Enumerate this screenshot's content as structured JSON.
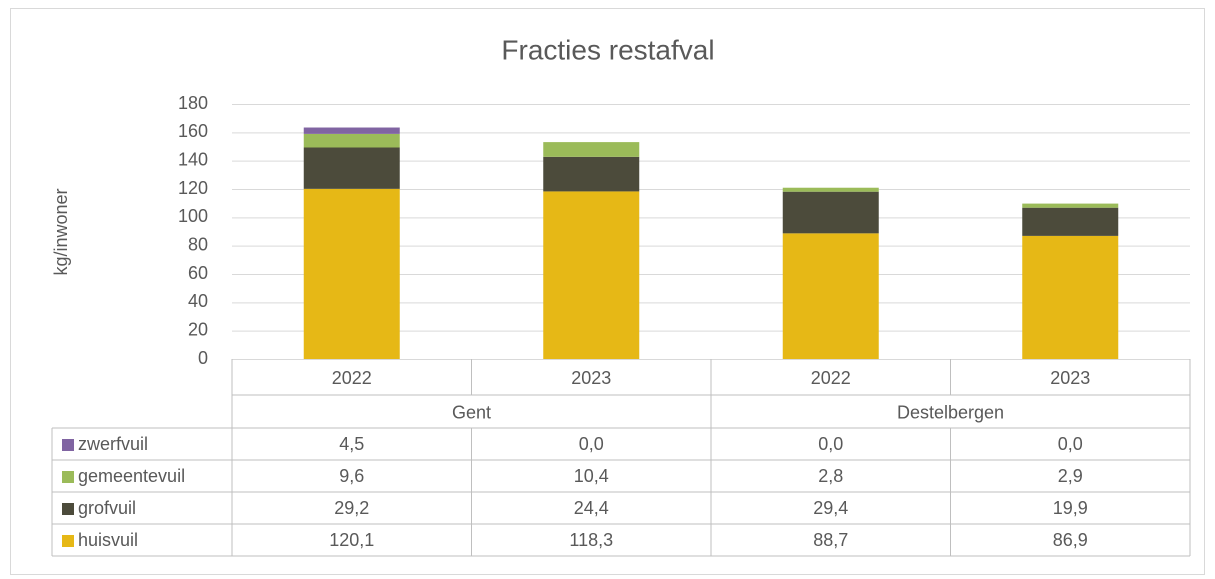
{
  "chart_data": {
    "type": "bar",
    "stacked": true,
    "title": "Fracties restafval",
    "y_label": "kg/inwoner",
    "categories": [
      "2022",
      "2023",
      "2022",
      "2023"
    ],
    "groups": [
      "Gent",
      "Destelbergen"
    ],
    "series": [
      {
        "name": "huisvuil",
        "color": "#e6b816",
        "values": [
          120.1,
          118.3,
          88.7,
          86.9
        ],
        "value_labels": [
          "120,1",
          "118,3",
          "88,7",
          "86,9"
        ]
      },
      {
        "name": "grofvuil",
        "color": "#4c4b3b",
        "values": [
          29.2,
          24.4,
          29.4,
          19.9
        ],
        "value_labels": [
          "29,2",
          "24,4",
          "29,4",
          "19,9"
        ]
      },
      {
        "name": "gemeentevuil",
        "color": "#9bbb59",
        "values": [
          9.6,
          10.4,
          2.8,
          2.9
        ],
        "value_labels": [
          "9,6",
          "10,4",
          "2,8",
          "2,9"
        ]
      },
      {
        "name": "zwerfvuil",
        "color": "#8064a2",
        "values": [
          4.5,
          0.0,
          0.0,
          0.0
        ],
        "value_labels": [
          "4,5",
          "0,0",
          "0,0",
          "0,0"
        ]
      }
    ],
    "ylim": [
      0,
      180
    ],
    "yticks": [
      0,
      20,
      40,
      60,
      80,
      100,
      120,
      140,
      160,
      180
    ],
    "grid": true,
    "legend": "table"
  }
}
